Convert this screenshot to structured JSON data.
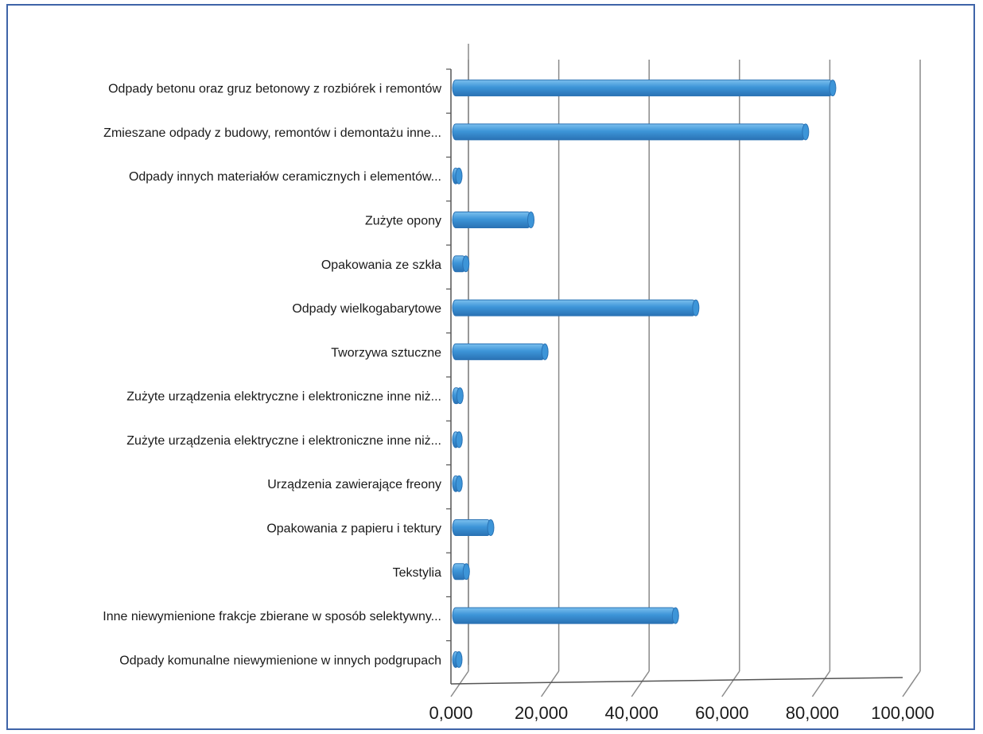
{
  "chart_data": {
    "type": "bar",
    "orientation": "horizontal",
    "style": "3d-cylinder",
    "categories": [
      "Odpady betonu oraz gruz betonowy z rozbiórek i remontów",
      "Zmieszane odpady z budowy, remontów i demontażu inne...",
      "Odpady innych materiałów ceramicznych i elementów...",
      "Zużyte opony",
      "Opakowania ze szkła",
      "Odpady wielkogabarytowe",
      "Tworzywa sztuczne",
      "Zużyte urządzenia elektryczne i elektroniczne inne niż...",
      "Zużyte urządzenia elektryczne i elektroniczne inne niż...",
      "Urządzenia zawierające freony",
      "Opakowania z papieru i tektury",
      "Tekstylia",
      "Inne niewymienione frakcje zbierane w sposób selektywny...",
      "Odpady komunalne niewymienione w innych podgrupach"
    ],
    "values": [
      84.5,
      78.5,
      1.2,
      17.7,
      3.3,
      54.2,
      20.8,
      2.0,
      1.8,
      1.8,
      8.8,
      3.4,
      49.7,
      1.7
    ],
    "xlim": [
      0,
      100
    ],
    "xticks": [
      "0,000",
      "20,000",
      "40,000",
      "60,000",
      "80,000",
      "100,000"
    ],
    "title": "",
    "xlabel": "",
    "ylabel": "",
    "grid": "vertical",
    "legend": "none",
    "colors": {
      "bar": "#3d95d8",
      "bar_dark": "#2a72b4",
      "bar_light": "#7cc0ee",
      "grid": "#8a8a8a",
      "frame": "#3f64a8"
    }
  }
}
